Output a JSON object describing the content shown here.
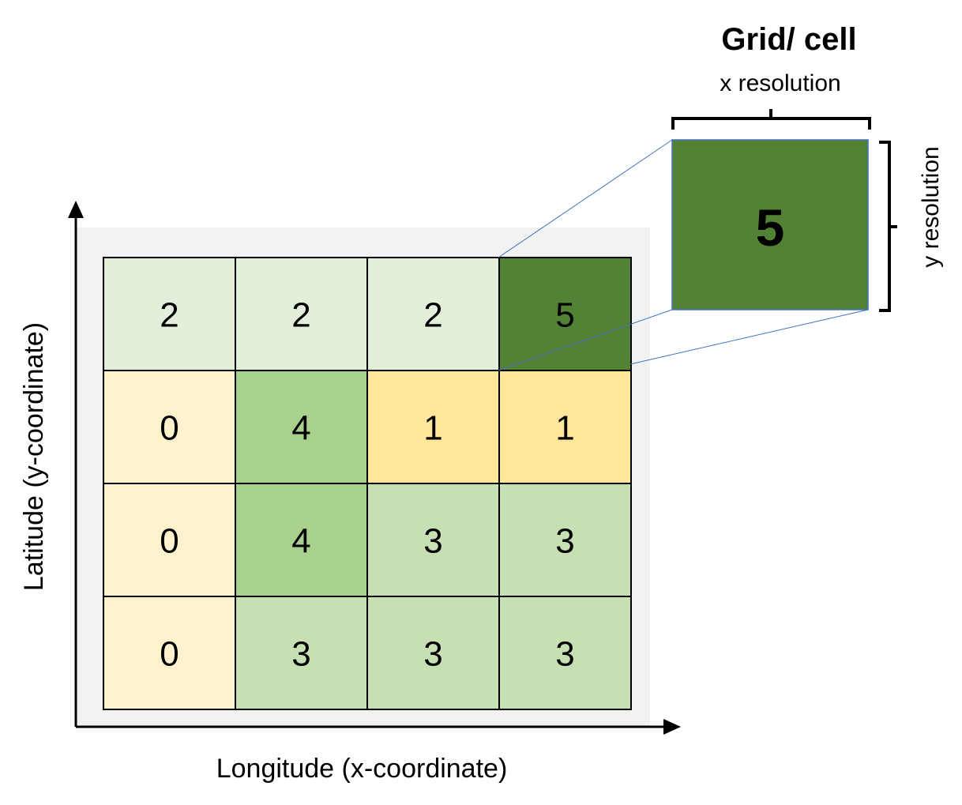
{
  "title": "Grid/ cell",
  "x_resolution_label": "x resolution",
  "y_resolution_label": "y resolution",
  "x_axis_label": "Longitude (x-coordinate)",
  "y_axis_label": "Latitude (y-coordinate)",
  "grid": {
    "rows": [
      [
        2,
        2,
        2,
        5
      ],
      [
        0,
        4,
        1,
        1
      ],
      [
        0,
        4,
        3,
        3
      ],
      [
        0,
        3,
        3,
        3
      ]
    ]
  },
  "zoom_cell": {
    "value": "5",
    "row": 0,
    "col": 3
  },
  "colors": {
    "background_panel": "#f2f2f2",
    "value_0": "#fff2cc",
    "value_1": "#ffe699",
    "value_2": "#e2efda",
    "value_3": "#c6e0b4",
    "value_4": "#a9d18e",
    "value_5": "#548235",
    "grid_line": "#000000",
    "connector_line": "#4472c4"
  }
}
